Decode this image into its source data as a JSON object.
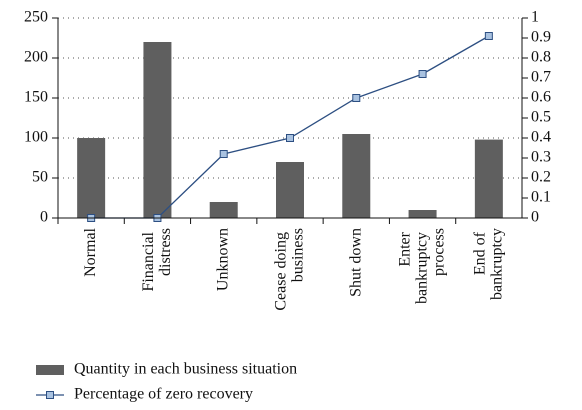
{
  "chart_data": {
    "type": "bar-line",
    "categories": [
      "Normal",
      "Financial distress",
      "Unknown",
      "Cease doing business",
      "Shut down",
      "Enter bankruptcy process",
      "End of bankruptcy"
    ],
    "series": [
      {
        "name": "Quantity in each business situation",
        "type": "bar",
        "color": "#5f5f5f",
        "values": [
          100,
          220,
          20,
          70,
          105,
          10,
          98
        ]
      },
      {
        "name": "Percentage of zero recovery",
        "type": "line",
        "axis": "y2",
        "color": "#2d4f82",
        "marker_fill": "#a9c2e0",
        "values": [
          0,
          0,
          0.32,
          0.4,
          0.6,
          0.72,
          0.91
        ]
      }
    ],
    "ylim": [
      0,
      250
    ],
    "yticks": [
      0,
      50,
      100,
      150,
      200,
      250
    ],
    "y2lim": [
      0,
      1
    ],
    "y2ticks": [
      0,
      0.1,
      0.2,
      0.3,
      0.4,
      0.5,
      0.6,
      0.7,
      0.8,
      0.9,
      1
    ],
    "grid": true,
    "legend": "bottom"
  }
}
